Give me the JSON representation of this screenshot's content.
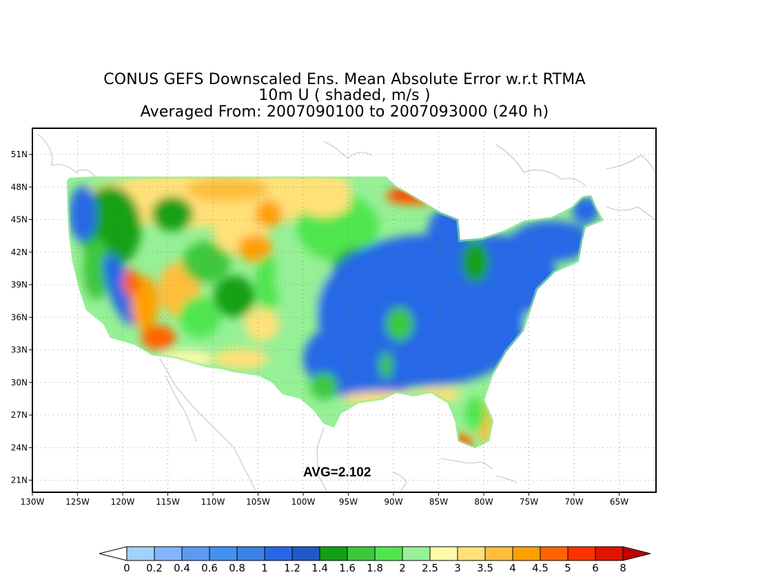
{
  "title": {
    "line1": "CONUS GEFS Downscaled Ens. Mean Absolute Error w.r.t RTMA",
    "line2": "10m U ( shaded, m/s )",
    "line3": "Averaged From: 2007090100 to 2007093000 (240 h)"
  },
  "avg_label": "AVG=2.102",
  "axes": {
    "lon_labels": [
      "130W",
      "125W",
      "120W",
      "115W",
      "110W",
      "105W",
      "100W",
      "95W",
      "90W",
      "85W",
      "80W",
      "75W",
      "70W",
      "65W"
    ],
    "lat_labels": [
      "51N",
      "48N",
      "45N",
      "42N",
      "39N",
      "36N",
      "33N",
      "30N",
      "27N",
      "24N",
      "21N"
    ],
    "lon_range": [
      -130,
      -63
    ],
    "lat_range": [
      20,
      53
    ]
  },
  "colorbar": {
    "labels": [
      "0",
      "0.2",
      "0.4",
      "0.6",
      "0.8",
      "1",
      "1.2",
      "1.4",
      "1.6",
      "1.8",
      "2",
      "2.5",
      "3",
      "3.5",
      "4",
      "4.5",
      "5",
      "6",
      "8"
    ],
    "colors": [
      "#a0d2ff",
      "#82b4ff",
      "#5a9bf0",
      "#4690f0",
      "#3c82e6",
      "#2868e6",
      "#1e5ac8",
      "#14a014",
      "#3cc83c",
      "#50e650",
      "#96f096",
      "#fffaaa",
      "#ffe178",
      "#ffbe3c",
      "#ffa000",
      "#ff6400",
      "#ff3200",
      "#e11400",
      "#c00000"
    ],
    "under_color": "#ffffff",
    "over_color": "#c00000"
  }
}
